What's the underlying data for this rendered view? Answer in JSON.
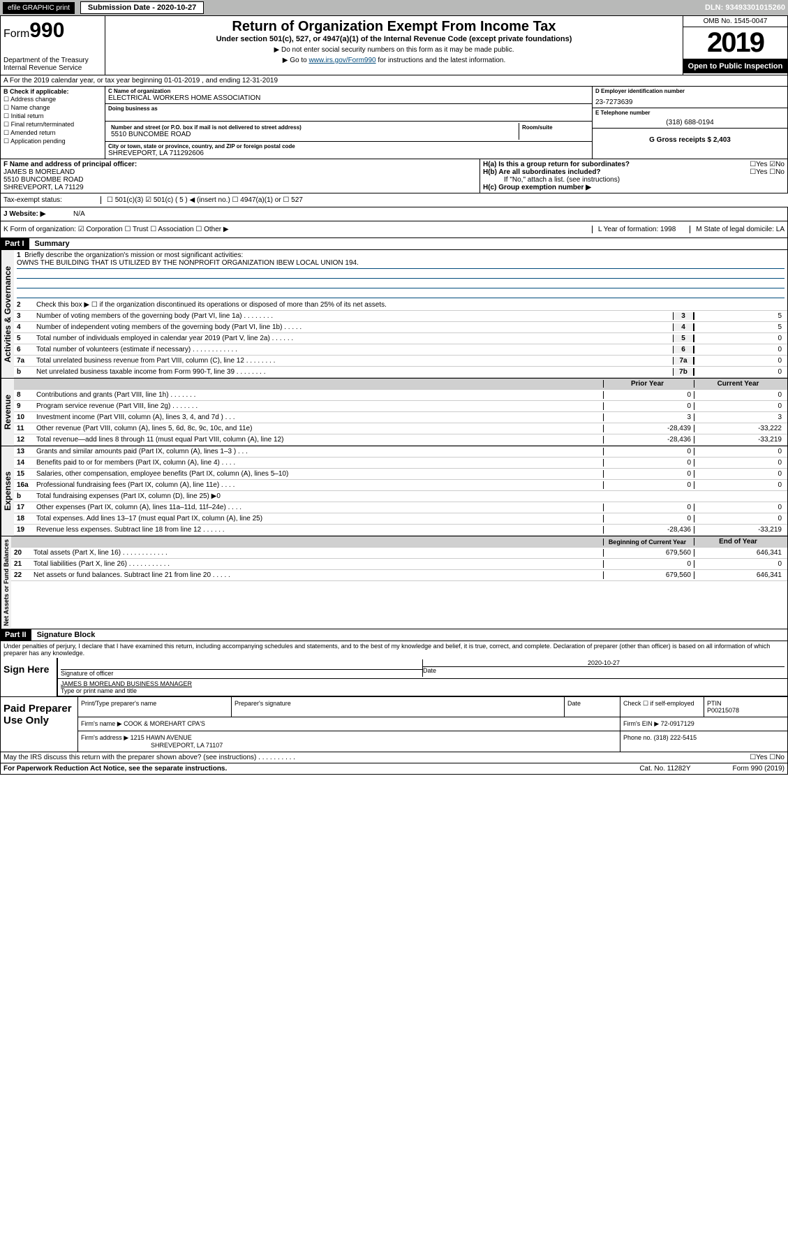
{
  "topbar": {
    "efile": "efile GRAPHIC print",
    "sub_label": "Submission Date - 2020-10-27",
    "dln": "DLN: 93493301015260"
  },
  "header": {
    "form": "Form",
    "form_num": "990",
    "dept": "Department of the Treasury\nInternal Revenue Service",
    "title": "Return of Organization Exempt From Income Tax",
    "subtitle": "Under section 501(c), 527, or 4947(a)(1) of the Internal Revenue Code (except private foundations)",
    "note1": "▶ Do not enter social security numbers on this form as it may be made public.",
    "note2_pre": "▶ Go to ",
    "note2_link": "www.irs.gov/Form990",
    "note2_post": " for instructions and the latest information.",
    "omb": "OMB No. 1545-0047",
    "year": "2019",
    "open": "Open to Public Inspection"
  },
  "row_a": "A For the 2019 calendar year, or tax year beginning 01-01-2019    , and ending 12-31-2019",
  "box_b": {
    "label": "B Check if applicable:",
    "opts": [
      "Address change",
      "Name change",
      "Initial return",
      "Final return/terminated",
      "Amended return",
      "Application pending"
    ]
  },
  "box_c": {
    "name_label": "C Name of organization",
    "name": "ELECTRICAL WORKERS HOME ASSOCIATION",
    "dba_label": "Doing business as",
    "addr_label": "Number and street (or P.O. box if mail is not delivered to street address)",
    "room_label": "Room/suite",
    "addr": "5510 BUNCOMBE ROAD",
    "city_label": "City or town, state or province, country, and ZIP or foreign postal code",
    "city": "SHREVEPORT, LA  711292606"
  },
  "box_d": {
    "ein_label": "D Employer identification number",
    "ein": "23-7273639",
    "tel_label": "E Telephone number",
    "tel": "(318) 688-0194",
    "g": "G Gross receipts $ 2,403"
  },
  "sec_f": {
    "f_label": "F  Name and address of principal officer:",
    "f_val": "JAMES B MORELAND\n5510 BUNCOMBE ROAD\nSHREVEPORT, LA  71129",
    "ha": "H(a)  Is this a group return for subordinates?",
    "ha_ans": "☐Yes ☑No",
    "hb": "H(b)  Are all subordinates included?",
    "hb_ans": "☐Yes ☐No",
    "hb_note": "If \"No,\" attach a list. (see instructions)",
    "hc": "H(c)  Group exemption number ▶"
  },
  "tax_status": {
    "label": "Tax-exempt status:",
    "opts": "☐ 501(c)(3)   ☑ 501(c) ( 5 ) ◀ (insert no.)   ☐ 4947(a)(1) or   ☐ 527"
  },
  "website": {
    "label": "J  Website: ▶",
    "val": "N/A"
  },
  "kform": {
    "k": "K Form of organization:  ☑ Corporation  ☐ Trust  ☐ Association  ☐ Other ▶",
    "l": "L Year of formation: 1998",
    "m": "M State of legal domicile: LA"
  },
  "part1": {
    "hdr": "Part I",
    "title": "Summary",
    "line1": "Briefly describe the organization's mission or most significant activities:",
    "mission": "OWNS THE BUILDING THAT IS UTILIZED BY THE NONPROFIT ORGANIZATION IBEW LOCAL UNION 194.",
    "line2": "Check this box ▶ ☐  if the organization discontinued its operations or disposed of more than 25% of its net assets."
  },
  "gov_lines": [
    {
      "n": "3",
      "d": "Number of voting members of the governing body (Part VI, line 1a)  .    .    .    .    .    .    .    .",
      "b": "3",
      "v": "5"
    },
    {
      "n": "4",
      "d": "Number of independent voting members of the governing body (Part VI, line 1b)  .    .    .    .    .",
      "b": "4",
      "v": "5"
    },
    {
      "n": "5",
      "d": "Total number of individuals employed in calendar year 2019 (Part V, line 2a)  .    .    .    .    .    .",
      "b": "5",
      "v": "0"
    },
    {
      "n": "6",
      "d": "Total number of volunteers (estimate if necessary)  .    .    .    .    .    .    .    .    .    .    .    .",
      "b": "6",
      "v": "0"
    },
    {
      "n": "7a",
      "d": "Total unrelated business revenue from Part VIII, column (C), line 12  .    .    .    .    .    .    .    .",
      "b": "7a",
      "v": "0"
    },
    {
      "n": " b",
      "d": "Net unrelated business taxable income from Form 990-T, line 39   .    .    .    .    .    .    .    .",
      "b": "7b",
      "v": "0"
    }
  ],
  "rev_hdr": {
    "prior": "Prior Year",
    "curr": "Current Year"
  },
  "rev_lines": [
    {
      "n": "8",
      "d": "Contributions and grants (Part VIII, line 1h)   .    .    .    .    .    .    .",
      "p": "0",
      "c": "0"
    },
    {
      "n": "9",
      "d": "Program service revenue (Part VIII, line 2g)   .    .    .    .    .    .    .",
      "p": "0",
      "c": "0"
    },
    {
      "n": "10",
      "d": "Investment income (Part VIII, column (A), lines 3, 4, and 7d )   .    .    .",
      "p": "3",
      "c": "3"
    },
    {
      "n": "11",
      "d": "Other revenue (Part VIII, column (A), lines 5, 6d, 8c, 9c, 10c, and 11e)",
      "p": "-28,439",
      "c": "-33,222"
    },
    {
      "n": "12",
      "d": "Total revenue—add lines 8 through 11 (must equal Part VIII, column (A), line 12)",
      "p": "-28,436",
      "c": "-33,219"
    }
  ],
  "exp_lines": [
    {
      "n": "13",
      "d": "Grants and similar amounts paid (Part IX, column (A), lines 1–3 )  .    .    .",
      "p": "0",
      "c": "0"
    },
    {
      "n": "14",
      "d": "Benefits paid to or for members (Part IX, column (A), line 4)  .    .    .    .",
      "p": "0",
      "c": "0"
    },
    {
      "n": "15",
      "d": "Salaries, other compensation, employee benefits (Part IX, column (A), lines 5–10)",
      "p": "0",
      "c": "0"
    },
    {
      "n": "16a",
      "d": "Professional fundraising fees (Part IX, column (A), line 11e)   .    .    .    .",
      "p": "0",
      "c": "0"
    },
    {
      "n": "b",
      "d": "Total fundraising expenses (Part IX, column (D), line 25) ▶0",
      "p": "",
      "c": "",
      "grey": true
    },
    {
      "n": "17",
      "d": "Other expenses (Part IX, column (A), lines 11a–11d, 11f–24e)  .    .    .    .",
      "p": "0",
      "c": "0"
    },
    {
      "n": "18",
      "d": "Total expenses. Add lines 13–17 (must equal Part IX, column (A), line 25)",
      "p": "0",
      "c": "0"
    },
    {
      "n": "19",
      "d": "Revenue less expenses. Subtract line 18 from line 12  .    .    .    .    .    .",
      "p": "-28,436",
      "c": "-33,219"
    }
  ],
  "net_hdr": {
    "prior": "Beginning of Current Year",
    "curr": "End of Year"
  },
  "net_lines": [
    {
      "n": "20",
      "d": "Total assets (Part X, line 16)  .    .    .    .    .    .    .    .    .    .    .    .",
      "p": "679,560",
      "c": "646,341"
    },
    {
      "n": "21",
      "d": "Total liabilities (Part X, line 26)   .    .    .    .    .    .    .    .    .    .    .",
      "p": "0",
      "c": "0"
    },
    {
      "n": "22",
      "d": "Net assets or fund balances. Subtract line 21 from line 20  .    .    .    .    .",
      "p": "679,560",
      "c": "646,341"
    }
  ],
  "part2": {
    "hdr": "Part II",
    "title": "Signature Block"
  },
  "sig": {
    "decl": "Under penalties of perjury, I declare that I have examined this return, including accompanying schedules and statements, and to the best of my knowledge and belief, it is true, correct, and complete. Declaration of preparer (other than officer) is based on all information of which preparer has any knowledge.",
    "sign": "Sign Here",
    "date": "2020-10-27",
    "sig_label": "Signature of officer",
    "date_label": "Date",
    "name": "JAMES B MORELAND  BUSINESS MANAGER",
    "name_label": "Type or print name and title"
  },
  "paid": {
    "title": "Paid Preparer Use Only",
    "h1": "Print/Type preparer's name",
    "h2": "Preparer's signature",
    "h3": "Date",
    "h4": "Check ☐ if self-employed",
    "h5l": "PTIN",
    "h5": "P00215078",
    "firm_label": "Firm's name      ▶",
    "firm": "COOK & MOREHART CPA'S",
    "ein_label": "Firm's EIN ▶",
    "ein": "72-0917129",
    "addr_label": "Firm's address  ▶",
    "addr": "1215 HAWN AVENUE",
    "addr2": "SHREVEPORT, LA  71107",
    "phone_label": "Phone no.",
    "phone": "(318) 222-5415"
  },
  "discuss": "May the IRS discuss this return with the preparer shown above? (see instructions)    .    .    .    .    .    .    .    .    .    .",
  "discuss_ans": "☐Yes  ☐No",
  "footer": {
    "l": "For Paperwork Reduction Act Notice, see the separate instructions.",
    "m": "Cat. No. 11282Y",
    "r": "Form 990 (2019)"
  },
  "labels": {
    "gov": "Activities & Governance",
    "rev": "Revenue",
    "exp": "Expenses",
    "net": "Net Assets or Fund Balances"
  }
}
